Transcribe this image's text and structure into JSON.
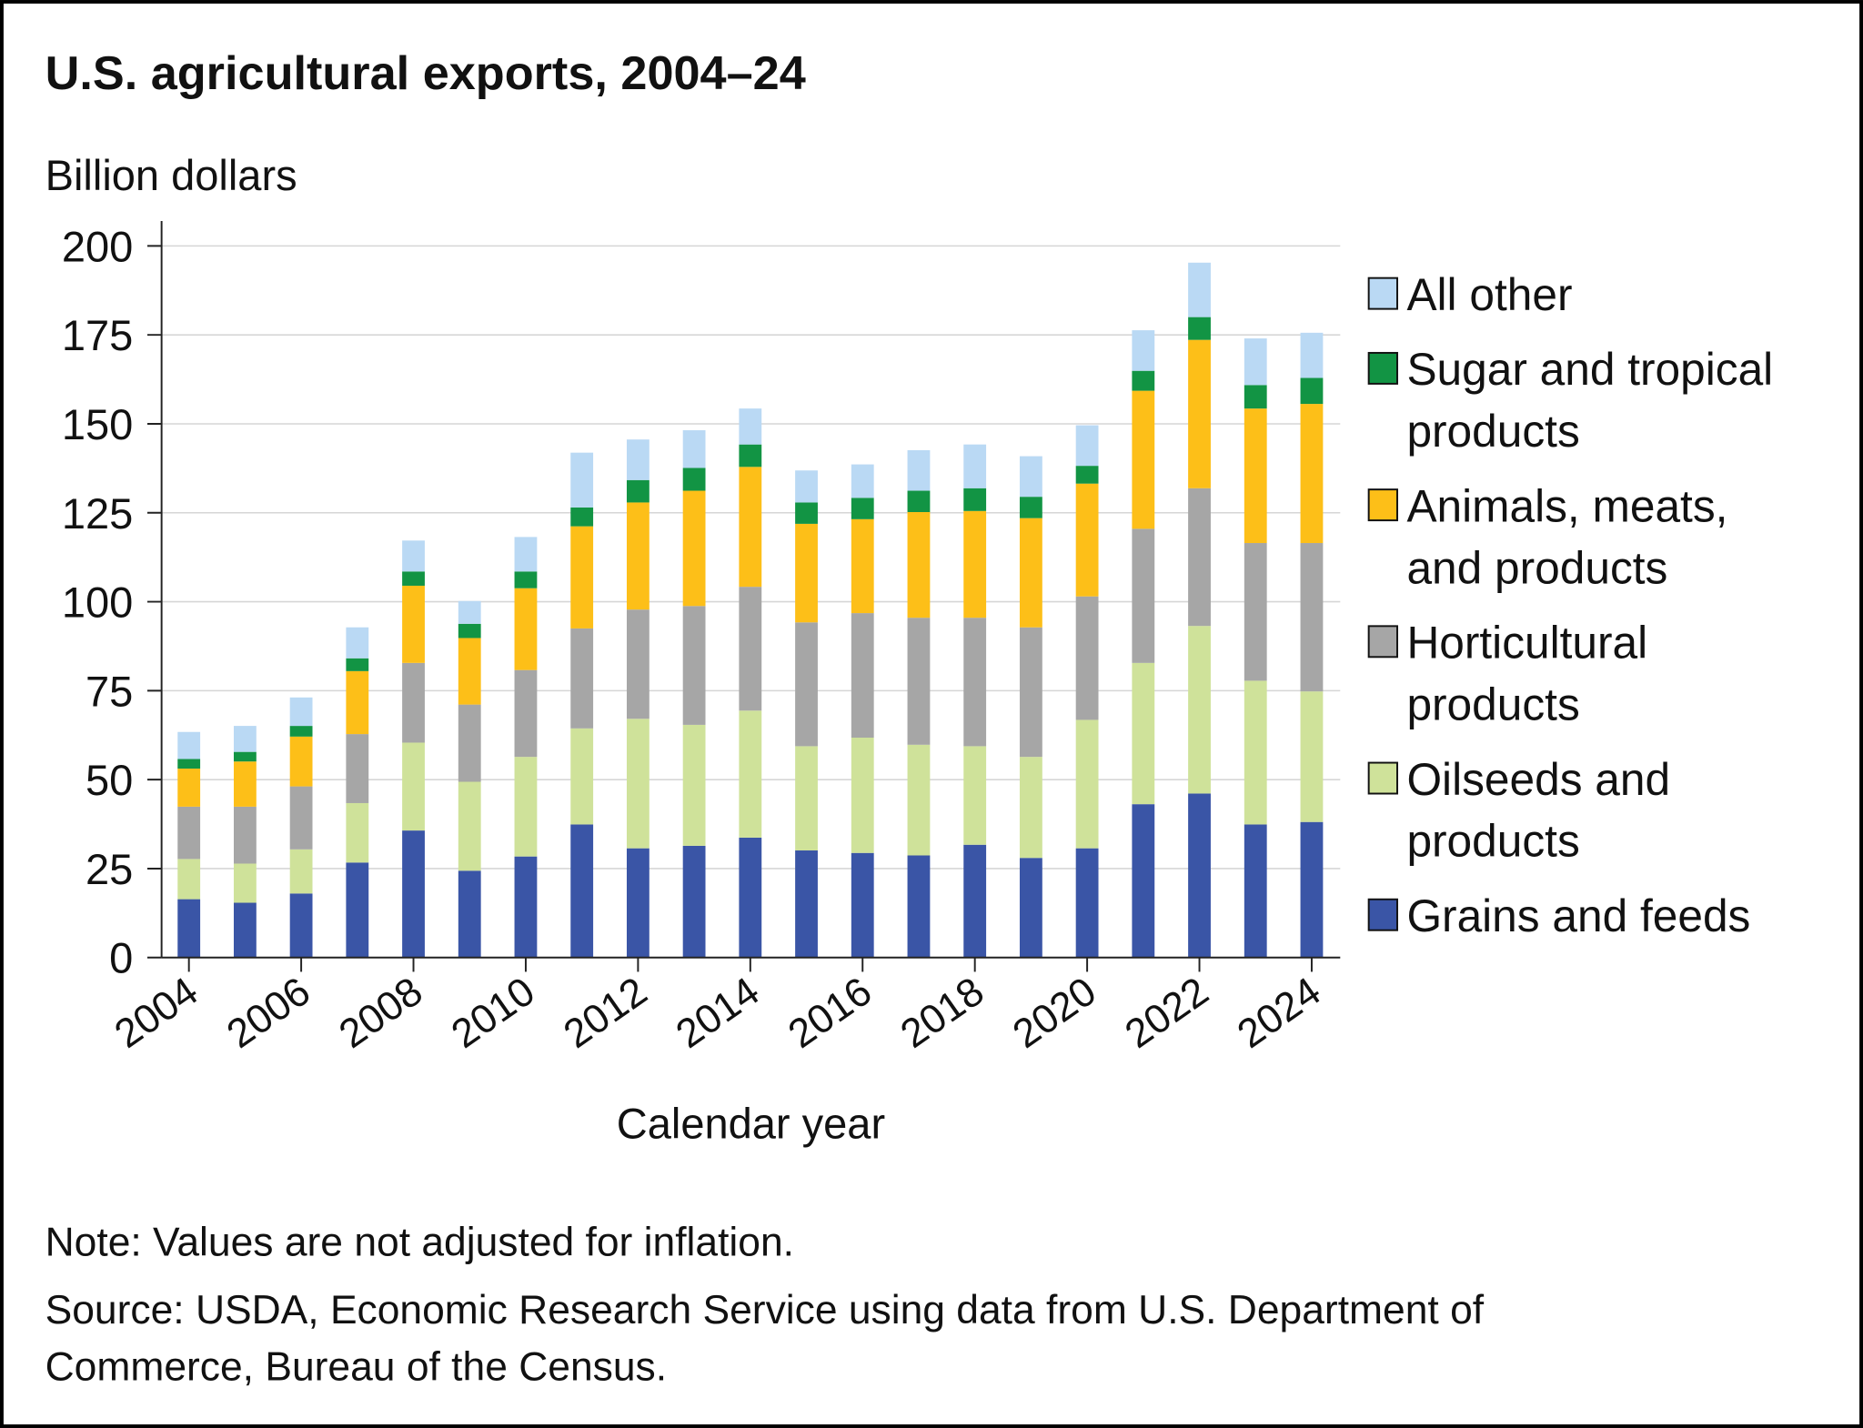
{
  "chart_data": {
    "type": "bar",
    "stacked": true,
    "title": "U.S. agricultural exports, 2004–24",
    "ylabel": "Billion dollars",
    "xlabel": "Calendar year",
    "ylim": [
      0,
      200
    ],
    "yticks": [
      "0",
      "25",
      "50",
      "75",
      "100",
      "125",
      "150",
      "175",
      "200"
    ],
    "grid": "horizontal",
    "legend_position": "right",
    "categories": [
      "2004",
      "2005",
      "2006",
      "2007",
      "2008",
      "2009",
      "2010",
      "2011",
      "2012",
      "2013",
      "2014",
      "2015",
      "2016",
      "2017",
      "2018",
      "2019",
      "2020",
      "2021",
      "2022",
      "2023",
      "2024"
    ],
    "xtick_labels": [
      "2004",
      "2006",
      "2008",
      "2010",
      "2012",
      "2014",
      "2016",
      "2018",
      "2020",
      "2022",
      "2024"
    ],
    "series": [
      {
        "name": "Grains and feeds",
        "legend_lines": [
          "Grains and feeds"
        ],
        "color": "#3a55a6",
        "values": [
          16.4,
          15.4,
          18.0,
          26.7,
          35.7,
          24.4,
          28.4,
          37.4,
          30.7,
          31.4,
          33.7,
          30.1,
          29.4,
          28.7,
          31.7,
          28.0,
          30.7,
          43.1,
          46.1,
          37.4,
          38.1
        ]
      },
      {
        "name": "Oilseeds and products",
        "legend_lines": [
          "Oilseeds and",
          "products"
        ],
        "color": "#cfe29a",
        "values": [
          11.3,
          11.0,
          12.4,
          16.7,
          24.7,
          25.0,
          28.0,
          27.0,
          36.4,
          34.0,
          35.7,
          29.3,
          32.4,
          31.1,
          27.7,
          28.4,
          36.1,
          39.7,
          47.1,
          40.4,
          36.7
        ]
      },
      {
        "name": "Horticultural products",
        "legend_lines": [
          "Horticultural",
          "products"
        ],
        "color": "#a6a6a6",
        "values": [
          14.7,
          16.0,
          17.7,
          19.4,
          22.4,
          21.7,
          24.4,
          28.1,
          30.7,
          33.4,
          34.8,
          34.8,
          35.0,
          35.7,
          36.1,
          36.4,
          34.7,
          37.7,
          38.7,
          38.7,
          41.7
        ]
      },
      {
        "name": "Animals, meats, and products",
        "legend_lines": [
          "Animals, meats,",
          "and products"
        ],
        "color": "#fdbf18",
        "values": [
          10.7,
          12.7,
          14.0,
          17.7,
          21.7,
          18.7,
          23.0,
          28.7,
          30.1,
          32.4,
          33.7,
          27.7,
          26.4,
          29.7,
          30.0,
          30.7,
          31.7,
          38.8,
          41.7,
          37.8,
          39.1
        ]
      },
      {
        "name": "Sugar and tropical products",
        "legend_lines": [
          "Sugar and tropical",
          "products"
        ],
        "color": "#129444",
        "values": [
          2.7,
          2.7,
          3.0,
          3.6,
          4.0,
          4.0,
          4.7,
          5.3,
          6.3,
          6.4,
          6.3,
          6.0,
          6.0,
          6.0,
          6.4,
          6.0,
          5.0,
          5.6,
          6.4,
          6.6,
          7.3
        ]
      },
      {
        "name": "All other",
        "legend_lines": [
          "All other"
        ],
        "color": "#bad9f4",
        "values": [
          7.6,
          7.3,
          8.0,
          8.7,
          8.7,
          6.4,
          9.7,
          15.4,
          11.4,
          10.6,
          10.1,
          9.0,
          9.4,
          11.4,
          12.3,
          11.4,
          11.4,
          11.4,
          15.3,
          13.1,
          12.7
        ]
      }
    ],
    "note": "Note: Values are not adjusted for inflation.",
    "source_lines": [
      "Source: USDA, Economic Research Service using data from U.S. Department of",
      "Commerce, Bureau of the Census."
    ]
  }
}
